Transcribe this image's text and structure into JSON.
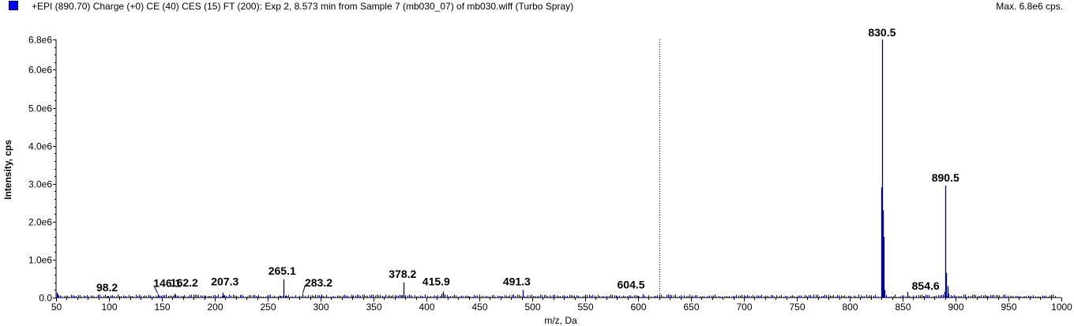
{
  "header": {
    "title": "+EPI (890.70) Charge (+0) CE (40) CES (15) FT (200): Exp 2, 8.573 min from Sample 7 (mb030_07) of mb030.wiff (Turbo Spray)",
    "max_label": "Max. 6.8e6 cps."
  },
  "colors": {
    "peak": "#00008b",
    "legend": "#0000ff",
    "axis": "#000000"
  },
  "chart_data": {
    "type": "bar",
    "xlabel": "m/z, Da",
    "ylabel": "Intensity, cps",
    "xlim": [
      50,
      1000
    ],
    "ylim": [
      0,
      6800000
    ],
    "x_ticks": [
      50,
      100,
      150,
      200,
      250,
      300,
      350,
      400,
      450,
      500,
      550,
      600,
      650,
      700,
      750,
      800,
      850,
      900,
      950,
      1000
    ],
    "y_ticks": [
      {
        "value": 0,
        "label": "0.0"
      },
      {
        "value": 1000000,
        "label": "1.0e6"
      },
      {
        "value": 2000000,
        "label": "2.0e6"
      },
      {
        "value": 3000000,
        "label": "3.0e6"
      },
      {
        "value": 4000000,
        "label": "4.0e6"
      },
      {
        "value": 5000000,
        "label": "5.0e6"
      },
      {
        "value": 6000000,
        "label": "6.0e6"
      },
      {
        "value": 6800000,
        "label": "6.8e6"
      }
    ],
    "divider_x": 620,
    "peaks": [
      {
        "x": 50.5,
        "y": 130000
      },
      {
        "x": 51.5,
        "y": 80000
      },
      {
        "x": 98.2,
        "y": 40000
      },
      {
        "x": 115.0,
        "y": 30000
      },
      {
        "x": 146.1,
        "y": 90000
      },
      {
        "x": 148.0,
        "y": 50000
      },
      {
        "x": 162.2,
        "y": 100000
      },
      {
        "x": 170.0,
        "y": 30000
      },
      {
        "x": 190.0,
        "y": 60000
      },
      {
        "x": 195.0,
        "y": 40000
      },
      {
        "x": 207.3,
        "y": 130000
      },
      {
        "x": 209.0,
        "y": 60000
      },
      {
        "x": 225.0,
        "y": 30000
      },
      {
        "x": 240.0,
        "y": 30000
      },
      {
        "x": 262.0,
        "y": 40000
      },
      {
        "x": 265.1,
        "y": 480000
      },
      {
        "x": 267.0,
        "y": 60000
      },
      {
        "x": 283.2,
        "y": 100000
      },
      {
        "x": 295.0,
        "y": 30000
      },
      {
        "x": 301.0,
        "y": 80000
      },
      {
        "x": 330.0,
        "y": 30000
      },
      {
        "x": 360.0,
        "y": 30000
      },
      {
        "x": 376.0,
        "y": 60000
      },
      {
        "x": 378.2,
        "y": 400000
      },
      {
        "x": 380.0,
        "y": 60000
      },
      {
        "x": 414.0,
        "y": 100000
      },
      {
        "x": 415.9,
        "y": 160000
      },
      {
        "x": 417.0,
        "y": 80000
      },
      {
        "x": 440.0,
        "y": 25000
      },
      {
        "x": 470.0,
        "y": 25000
      },
      {
        "x": 491.3,
        "y": 200000
      },
      {
        "x": 530.0,
        "y": 25000
      },
      {
        "x": 580.0,
        "y": 30000
      },
      {
        "x": 600.0,
        "y": 40000
      },
      {
        "x": 604.5,
        "y": 90000
      },
      {
        "x": 650.0,
        "y": 20000
      },
      {
        "x": 700.0,
        "y": 20000
      },
      {
        "x": 760.0,
        "y": 20000
      },
      {
        "x": 800.0,
        "y": 30000
      },
      {
        "x": 829.5,
        "y": 2900000
      },
      {
        "x": 830.5,
        "y": 6800000
      },
      {
        "x": 831.3,
        "y": 2300000
      },
      {
        "x": 832.0,
        "y": 1600000
      },
      {
        "x": 833.0,
        "y": 200000
      },
      {
        "x": 854.6,
        "y": 150000
      },
      {
        "x": 870.0,
        "y": 40000
      },
      {
        "x": 889.5,
        "y": 150000
      },
      {
        "x": 890.5,
        "y": 2950000
      },
      {
        "x": 891.3,
        "y": 650000
      },
      {
        "x": 892.3,
        "y": 300000
      },
      {
        "x": 893.3,
        "y": 100000
      },
      {
        "x": 930.0,
        "y": 30000
      },
      {
        "x": 960.0,
        "y": 20000
      }
    ],
    "annotations": [
      {
        "label": "98.2",
        "x": 98.2,
        "y": 40000
      },
      {
        "label": "146.1",
        "x": 146.1,
        "y": 90000
      },
      {
        "label": "162.2",
        "x": 162.2,
        "y": 100000
      },
      {
        "label": "207.3",
        "x": 207.3,
        "y": 130000
      },
      {
        "label": "265.1",
        "x": 265.1,
        "y": 480000
      },
      {
        "label": "283.2",
        "x": 283.2,
        "y": 100000
      },
      {
        "label": "378.2",
        "x": 378.2,
        "y": 400000
      },
      {
        "label": "415.9",
        "x": 415.9,
        "y": 160000
      },
      {
        "label": "491.3",
        "x": 491.3,
        "y": 200000
      },
      {
        "label": "604.5",
        "x": 604.5,
        "y": 90000
      },
      {
        "label": "830.5",
        "x": 830.5,
        "y": 6800000
      },
      {
        "label": "854.6",
        "x": 854.6,
        "y": 150000
      },
      {
        "label": "890.5",
        "x": 890.5,
        "y": 2950000
      }
    ]
  }
}
